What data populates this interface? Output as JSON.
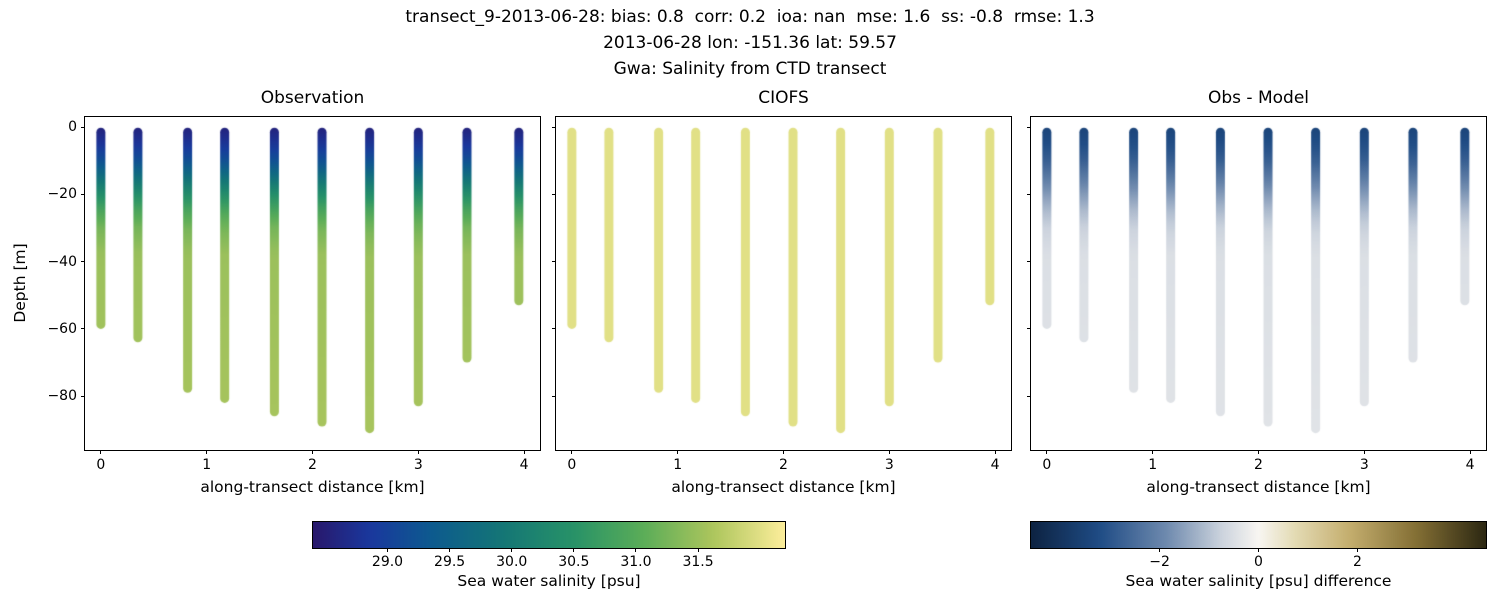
{
  "titles": {
    "line1": "transect_9-2013-06-28: bias: 0.8  corr: 0.2  ioa: nan  mse: 1.6  ss: -0.8  rmse: 1.3",
    "line2": "2013-06-28 lon: -151.36 lat: 59.57",
    "line3": "Gwa: Salinity from CTD transect"
  },
  "panels": [
    {
      "title": "Observation"
    },
    {
      "title": "CIOFS"
    },
    {
      "title": "Obs - Model"
    }
  ],
  "axes": {
    "xlabel": "along-transect distance [km]",
    "ylabel": "Depth [m]",
    "x_ticks": [
      0,
      1,
      2,
      3,
      4
    ],
    "x_tick_labels": [
      "0",
      "1",
      "2",
      "3",
      "4"
    ],
    "y_ticks": [
      0,
      -20,
      -40,
      -60,
      -80
    ],
    "y_tick_labels": [
      "0",
      "−20",
      "−40",
      "−60",
      "−80"
    ],
    "xlim": [
      -0.15,
      4.15
    ],
    "ylim": [
      3,
      -96
    ]
  },
  "colorbars": [
    {
      "label": "Sea water salinity [psu]",
      "ticks": [
        29.0,
        29.5,
        30.0,
        30.5,
        31.0,
        31.5
      ],
      "tick_labels": [
        "29.0",
        "29.5",
        "30.0",
        "30.5",
        "31.0",
        "31.5"
      ],
      "vmin": 28.4,
      "vmax": 32.2,
      "colormap": [
        {
          "t": 0.0,
          "color": "#29186b"
        },
        {
          "t": 0.12,
          "color": "#1a389e"
        },
        {
          "t": 0.25,
          "color": "#0d5a8f"
        },
        {
          "t": 0.4,
          "color": "#147676"
        },
        {
          "t": 0.55,
          "color": "#279268"
        },
        {
          "t": 0.7,
          "color": "#5bad58"
        },
        {
          "t": 0.85,
          "color": "#aec65d"
        },
        {
          "t": 1.0,
          "color": "#fdee9c"
        }
      ]
    },
    {
      "label": "Sea water salinity [psu] difference",
      "ticks": [
        -2,
        0,
        2
      ],
      "tick_labels": [
        "−2",
        "0",
        "2"
      ],
      "vmin": -4.6,
      "vmax": 4.6,
      "colormap": [
        {
          "t": 0.0,
          "color": "#0d2342"
        },
        {
          "t": 0.15,
          "color": "#1f4c85"
        },
        {
          "t": 0.3,
          "color": "#708baf"
        },
        {
          "t": 0.42,
          "color": "#cdd4de"
        },
        {
          "t": 0.5,
          "color": "#f8f6f2"
        },
        {
          "t": 0.58,
          "color": "#e4dbb4"
        },
        {
          "t": 0.7,
          "color": "#c4ae6e"
        },
        {
          "t": 0.85,
          "color": "#826e34"
        },
        {
          "t": 1.0,
          "color": "#2c2812"
        }
      ]
    }
  ],
  "chart_data": {
    "type": "scatter",
    "description": "Vertical CTD salinity profiles along a 4 km transect. Three panels share axes: observed salinity (colored by salinity), CIOFS model salinity (uniform ~32 psu, pale yellow), and observation minus model difference (dark blue near surface fading to near-zero at depth).",
    "profiles_x_km": [
      0.0,
      0.35,
      0.82,
      1.17,
      1.64,
      2.09,
      2.54,
      3.0,
      3.46,
      3.95
    ],
    "profile_bottom_depth_m": [
      -60,
      -64,
      -79,
      -82,
      -86,
      -89,
      -91,
      -83,
      -70,
      -53
    ],
    "obs_salinity_vs_depth": {
      "depth_m": [
        0,
        -5,
        -10,
        -15,
        -20,
        -25,
        -30,
        -38,
        -96
      ],
      "salinity_psu": [
        28.55,
        28.8,
        29.2,
        29.8,
        30.4,
        30.9,
        31.25,
        31.5,
        31.6
      ]
    },
    "model_salinity_psu": 32.0,
    "stats": {
      "bias": 0.8,
      "corr": 0.2,
      "ioa": "nan",
      "mse": 1.6,
      "ss": -0.8,
      "rmse": 1.3
    },
    "date": "2013-06-28",
    "lon": -151.36,
    "lat": 59.57,
    "station": "Gwa"
  }
}
